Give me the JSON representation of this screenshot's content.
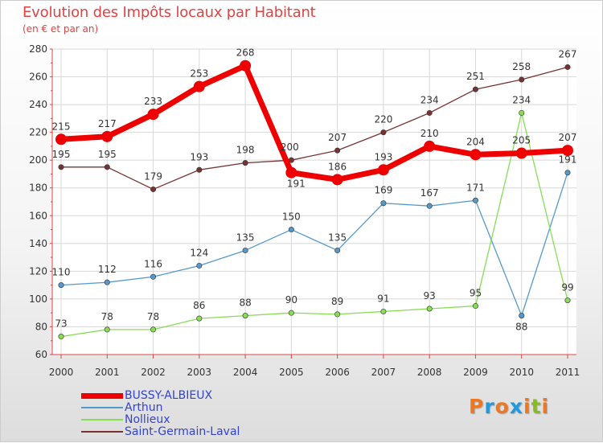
{
  "title": "Evolution des Impôts locaux par Habitant",
  "subtitle": "(en € et par an)",
  "logo_text": "Proxiti",
  "colors": {
    "title": "#dd4444",
    "axis_text": "#333333",
    "grid": "#d8d8d8",
    "legend_text": "#3344cc"
  },
  "chart_data": {
    "type": "line",
    "title": "Evolution des Impôts locaux par Habitant",
    "subtitle": "(en € et par an)",
    "xlabel": "",
    "ylabel": "",
    "x": [
      "2000",
      "2001",
      "2002",
      "2003",
      "2004",
      "2005",
      "2006",
      "2007",
      "2008",
      "2009",
      "2010",
      "2011"
    ],
    "ylim": [
      60,
      280
    ],
    "yticks": [
      60,
      80,
      100,
      120,
      140,
      160,
      180,
      200,
      220,
      240,
      260,
      280
    ],
    "grid": true,
    "legend_position": "bottom-left",
    "series": [
      {
        "name": "BUSSY-ALBIEUX",
        "color": "#ee0000",
        "weight": "bold",
        "values": [
          215,
          217,
          233,
          253,
          268,
          191,
          186,
          193,
          210,
          204,
          205,
          207
        ]
      },
      {
        "name": "Arthun",
        "color": "#5599cc",
        "weight": "normal",
        "values": [
          110,
          112,
          116,
          124,
          135,
          150,
          135,
          169,
          167,
          171,
          88,
          191
        ]
      },
      {
        "name": "Nollieux",
        "color": "#88dd55",
        "weight": "normal",
        "values": [
          73,
          78,
          78,
          86,
          88,
          90,
          89,
          91,
          93,
          95,
          234,
          99
        ]
      },
      {
        "name": "Saint-Germain-Laval",
        "color": "#773333",
        "weight": "normal",
        "values": [
          195,
          195,
          179,
          193,
          198,
          200,
          207,
          220,
          234,
          251,
          258,
          267
        ]
      }
    ]
  }
}
